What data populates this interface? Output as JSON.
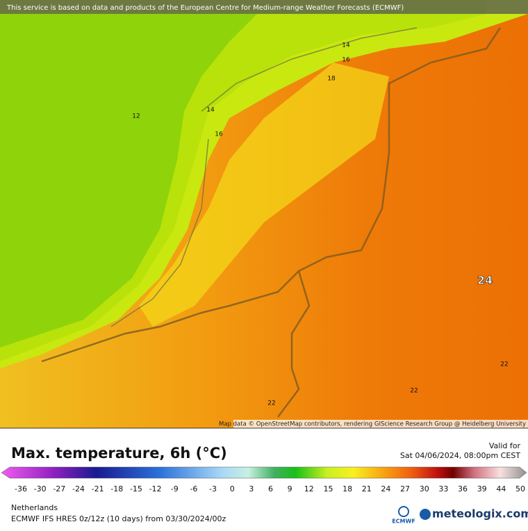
{
  "header": {
    "notice": "This service is based on data and products of the European Centre for Medium-range Weather Forecasts (ECMWF)"
  },
  "map": {
    "attribution": "Map data © OpenStreetMap contributors, rendering GIScience Research Group @ Heidelberg University",
    "contour_labels": [
      14,
      16,
      18,
      14,
      12,
      16,
      24,
      22,
      22,
      22
    ]
  },
  "footer": {
    "title": "Max. temperature, 6h (°C)",
    "valid_label": "Valid for",
    "valid_time": "Sat 04/06/2024, 08:00pm CEST",
    "colorbar_ticks": [
      -36,
      -30,
      -27,
      -24,
      -21,
      -18,
      -15,
      -12,
      -9,
      -6,
      -3,
      0,
      3,
      6,
      9,
      12,
      15,
      18,
      21,
      24,
      27,
      30,
      33,
      36,
      39,
      44,
      50
    ],
    "region": "Netherlands",
    "model": "ECMWF IFS HRES 0z/12z (10 days) from 03/30/2024/00z",
    "logo_ecmwf": "ECMWF",
    "logo_site": "meteologix.com"
  }
}
